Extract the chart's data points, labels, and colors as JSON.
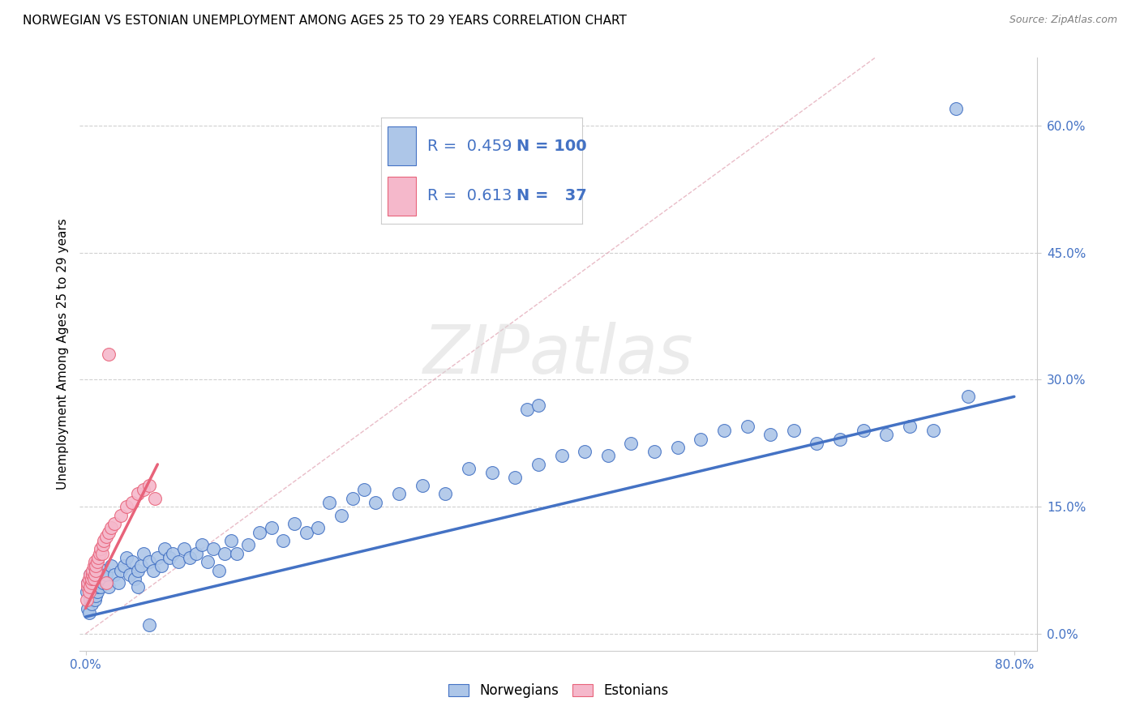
{
  "title": "NORWEGIAN VS ESTONIAN UNEMPLOYMENT AMONG AGES 25 TO 29 YEARS CORRELATION CHART",
  "source": "Source: ZipAtlas.com",
  "ylabel": "Unemployment Among Ages 25 to 29 years",
  "xlim": [
    -0.005,
    0.82
  ],
  "ylim": [
    -0.02,
    0.68
  ],
  "ytick_positions": [
    0.0,
    0.15,
    0.3,
    0.45,
    0.6
  ],
  "norwegian_color": "#adc6e8",
  "estonian_color": "#f5b8cb",
  "norwegian_line_color": "#4472c4",
  "estonian_line_color": "#e8637a",
  "R_norwegian": 0.459,
  "N_norwegian": 100,
  "R_estonian": 0.613,
  "N_estonian": 37,
  "watermark": "ZIPatlas",
  "background_color": "#ffffff",
  "grid_color": "#d0d0d0",
  "title_fontsize": 11,
  "axis_label_fontsize": 11,
  "tick_fontsize": 11,
  "legend_fontsize": 14,
  "nor_x": [
    0.001,
    0.002,
    0.002,
    0.003,
    0.003,
    0.004,
    0.004,
    0.005,
    0.005,
    0.006,
    0.006,
    0.007,
    0.007,
    0.008,
    0.008,
    0.009,
    0.009,
    0.01,
    0.01,
    0.011,
    0.012,
    0.013,
    0.014,
    0.015,
    0.016,
    0.017,
    0.018,
    0.02,
    0.022,
    0.025,
    0.028,
    0.03,
    0.033,
    0.035,
    0.038,
    0.04,
    0.042,
    0.045,
    0.048,
    0.05,
    0.055,
    0.058,
    0.062,
    0.065,
    0.068,
    0.072,
    0.075,
    0.08,
    0.085,
    0.09,
    0.095,
    0.1,
    0.105,
    0.11,
    0.115,
    0.12,
    0.125,
    0.13,
    0.14,
    0.15,
    0.16,
    0.17,
    0.18,
    0.19,
    0.2,
    0.21,
    0.22,
    0.23,
    0.24,
    0.25,
    0.27,
    0.29,
    0.31,
    0.33,
    0.35,
    0.37,
    0.39,
    0.41,
    0.43,
    0.45,
    0.47,
    0.49,
    0.51,
    0.53,
    0.55,
    0.57,
    0.59,
    0.61,
    0.63,
    0.65,
    0.67,
    0.69,
    0.71,
    0.73,
    0.045,
    0.055,
    0.38,
    0.39,
    0.75,
    0.76
  ],
  "nor_y": [
    0.05,
    0.03,
    0.06,
    0.025,
    0.055,
    0.04,
    0.07,
    0.035,
    0.065,
    0.045,
    0.055,
    0.05,
    0.06,
    0.04,
    0.07,
    0.045,
    0.075,
    0.05,
    0.055,
    0.06,
    0.065,
    0.055,
    0.07,
    0.06,
    0.075,
    0.065,
    0.07,
    0.055,
    0.08,
    0.07,
    0.06,
    0.075,
    0.08,
    0.09,
    0.07,
    0.085,
    0.065,
    0.075,
    0.08,
    0.095,
    0.085,
    0.075,
    0.09,
    0.08,
    0.1,
    0.09,
    0.095,
    0.085,
    0.1,
    0.09,
    0.095,
    0.105,
    0.085,
    0.1,
    0.075,
    0.095,
    0.11,
    0.095,
    0.105,
    0.12,
    0.125,
    0.11,
    0.13,
    0.12,
    0.125,
    0.155,
    0.14,
    0.16,
    0.17,
    0.155,
    0.165,
    0.175,
    0.165,
    0.195,
    0.19,
    0.185,
    0.2,
    0.21,
    0.215,
    0.21,
    0.225,
    0.215,
    0.22,
    0.23,
    0.24,
    0.245,
    0.235,
    0.24,
    0.225,
    0.23,
    0.24,
    0.235,
    0.245,
    0.24,
    0.055,
    0.01,
    0.265,
    0.27,
    0.62,
    0.28
  ],
  "est_x": [
    0.001,
    0.002,
    0.002,
    0.003,
    0.003,
    0.004,
    0.004,
    0.005,
    0.005,
    0.006,
    0.006,
    0.007,
    0.007,
    0.008,
    0.008,
    0.009,
    0.009,
    0.01,
    0.011,
    0.012,
    0.013,
    0.014,
    0.015,
    0.016,
    0.018,
    0.02,
    0.022,
    0.025,
    0.03,
    0.035,
    0.04,
    0.045,
    0.05,
    0.055,
    0.06,
    0.02,
    0.018
  ],
  "est_y": [
    0.04,
    0.055,
    0.06,
    0.05,
    0.065,
    0.055,
    0.07,
    0.06,
    0.065,
    0.07,
    0.075,
    0.065,
    0.08,
    0.07,
    0.085,
    0.075,
    0.08,
    0.085,
    0.09,
    0.095,
    0.1,
    0.095,
    0.105,
    0.11,
    0.115,
    0.12,
    0.125,
    0.13,
    0.14,
    0.15,
    0.155,
    0.165,
    0.17,
    0.175,
    0.16,
    0.33,
    0.06
  ],
  "nor_trend_x": [
    0.0,
    0.8
  ],
  "nor_trend_y": [
    0.02,
    0.28
  ],
  "est_trend_x": [
    0.0,
    0.062
  ],
  "est_trend_y": [
    0.03,
    0.2
  ]
}
